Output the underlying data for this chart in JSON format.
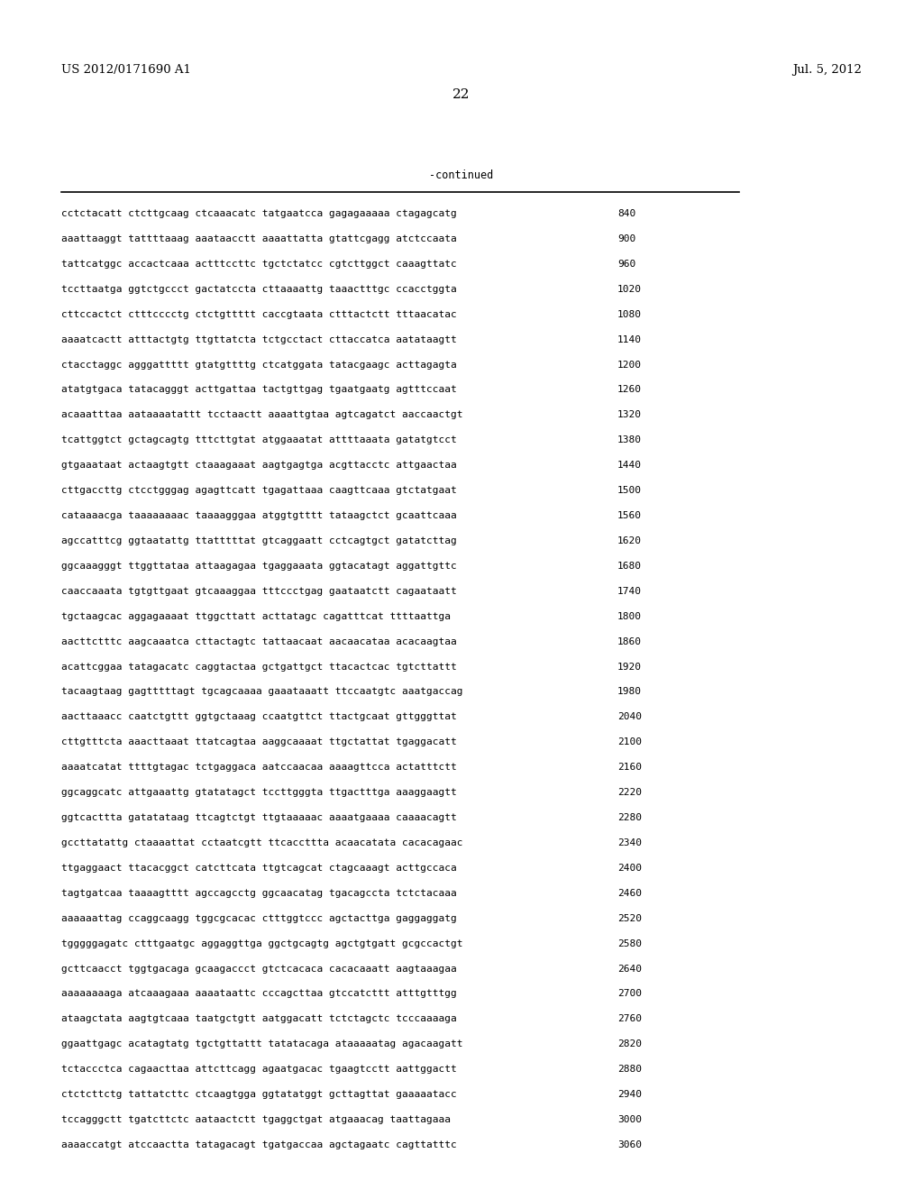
{
  "header_left": "US 2012/0171690 A1",
  "header_right": "Jul. 5, 2012",
  "page_number": "22",
  "continued_label": "-continued",
  "background_color": "#ffffff",
  "text_color": "#000000",
  "seq_font_size": 8.0,
  "header_font_size": 9.5,
  "page_num_font_size": 11,
  "sequences": [
    [
      "cctctacatt ctcttgcaag ctcaaacatc tatgaatcca gagagaaaaa ctagagcatg",
      "840"
    ],
    [
      "aaattaaggt tattttaaag aaataacctt aaaattatta gtattcgagg atctccaata",
      "900"
    ],
    [
      "tattcatggc accactcaaa actttccttc tgctctatcc cgtcttggct caaagttatc",
      "960"
    ],
    [
      "tccttaatga ggtctgccct gactatccta cttaaaattg taaactttgc ccacctggta",
      "1020"
    ],
    [
      "cttccactct ctttcccctg ctctgttttt caccgtaata ctttactctt tttaacatac",
      "1080"
    ],
    [
      "aaaatcactt atttactgtg ttgttatcta tctgcctact cttaccatca aatataagtt",
      "1140"
    ],
    [
      "ctacctaggc agggattttt gtatgttttg ctcatggata tatacgaagc acttagagta",
      "1200"
    ],
    [
      "atatgtgaca tatacagggt acttgattaa tactgttgag tgaatgaatg agtttccaat",
      "1260"
    ],
    [
      "acaaatttaa aataaaatattt tcctaactt aaaattgtaa agtcagatct aaccaactgt",
      "1320"
    ],
    [
      "tcattggtct gctagcagtg tttcttgtat atggaaatat attttaaata gatatgtcct",
      "1380"
    ],
    [
      "gtgaaataat actaagtgtt ctaaagaaat aagtgagtga acgttacctc attgaactaa",
      "1440"
    ],
    [
      "cttgaccttg ctcctgggag agagttcatt tgagattaaa caagttcaaa gtctatgaat",
      "1500"
    ],
    [
      "cataaaacga taaaaaaaac taaaagggaa atggtgtttt tataagctct gcaattcaaa",
      "1560"
    ],
    [
      "agccatttcg ggtaatattg ttatttttat gtcaggaatt cctcagtgct gatatcttag",
      "1620"
    ],
    [
      "ggcaaagggt ttggttataa attaagagaa tgaggaaata ggtacatagt aggattgttc",
      "1680"
    ],
    [
      "caaccaaata tgtgttgaat gtcaaaggaa tttccctgag gaataatctt cagaataatt",
      "1740"
    ],
    [
      "tgctaagcac aggagaaaat ttggcttatt acttatagc cagatttcat ttttaattga",
      "1800"
    ],
    [
      "aacttctttc aagcaaatca cttactagtc tattaacaat aacaacataa acacaagtaa",
      "1860"
    ],
    [
      "acattcggaa tatagacatc caggtactaa gctgattgct ttacactcac tgtcttattt",
      "1920"
    ],
    [
      "tacaagtaag gagtttttagt tgcagcaaaa gaaataaatt ttccaatgtc aaatgaccag",
      "1980"
    ],
    [
      "aacttaaacc caatctgttt ggtgctaaag ccaatgttct ttactgcaat gttgggttat",
      "2040"
    ],
    [
      "cttgtttcta aaacttaaat ttatcagtaa aaggcaaaat ttgctattat tgaggacatt",
      "2100"
    ],
    [
      "aaaatcatat ttttgtagac tctgaggaca aatccaacaa aaaagttcca actatttctt",
      "2160"
    ],
    [
      "ggcaggcatc attgaaattg gtatatagct tccttgggta ttgactttga aaaggaagtt",
      "2220"
    ],
    [
      "ggtcacttta gatatataag ttcagtctgt ttgtaaaaac aaaatgaaaa caaaacagtt",
      "2280"
    ],
    [
      "gccttatattg ctaaaattat cctaatcgtt ttcaccttta acaacatata cacacagaac",
      "2340"
    ],
    [
      "ttgaggaact ttacacggct catcttcata ttgtcagcat ctagcaaagt acttgccaca",
      "2400"
    ],
    [
      "tagtgatcaa taaaagtttt agccagcctg ggcaacatag tgacagccta tctctacaaa",
      "2460"
    ],
    [
      "aaaaaattag ccaggcaagg tggcgcacac ctttggtccc agctacttga gaggaggatg",
      "2520"
    ],
    [
      "tgggggagatc ctttgaatgc aggaggttga ggctgcagtg agctgtgatt gcgccactgt",
      "2580"
    ],
    [
      "gcttcaacct tggtgacaga gcaagaccct gtctcacaca cacacaaatt aagtaaagaa",
      "2640"
    ],
    [
      "aaaaaaaaga atcaaagaaa aaaataattc cccagcttaa gtccatcttt atttgtttgg",
      "2700"
    ],
    [
      "ataagctata aagtgtcaaa taatgctgtt aatggacatt tctctagctc tcccaaaaga",
      "2760"
    ],
    [
      "ggaattgagc acatagtatg tgctgttattt tatatacaga ataaaaatag agacaagatt",
      "2820"
    ],
    [
      "tctaccctca cagaacttaa attcttcagg agaatgacac tgaagtcctt aattggactt",
      "2880"
    ],
    [
      "ctctcttctg tattatcttc ctcaagtgga ggtatatggt gcttagttat gaaaaatacc",
      "2940"
    ],
    [
      "tccagggctt tgatcttctc aataactctt tgaggctgat atgaaacag taattagaaa",
      "3000"
    ],
    [
      "aaaaccatgt atccaactta tatagacagt tgatgaccaa agctagaatc cagttatttc",
      "3060"
    ]
  ]
}
